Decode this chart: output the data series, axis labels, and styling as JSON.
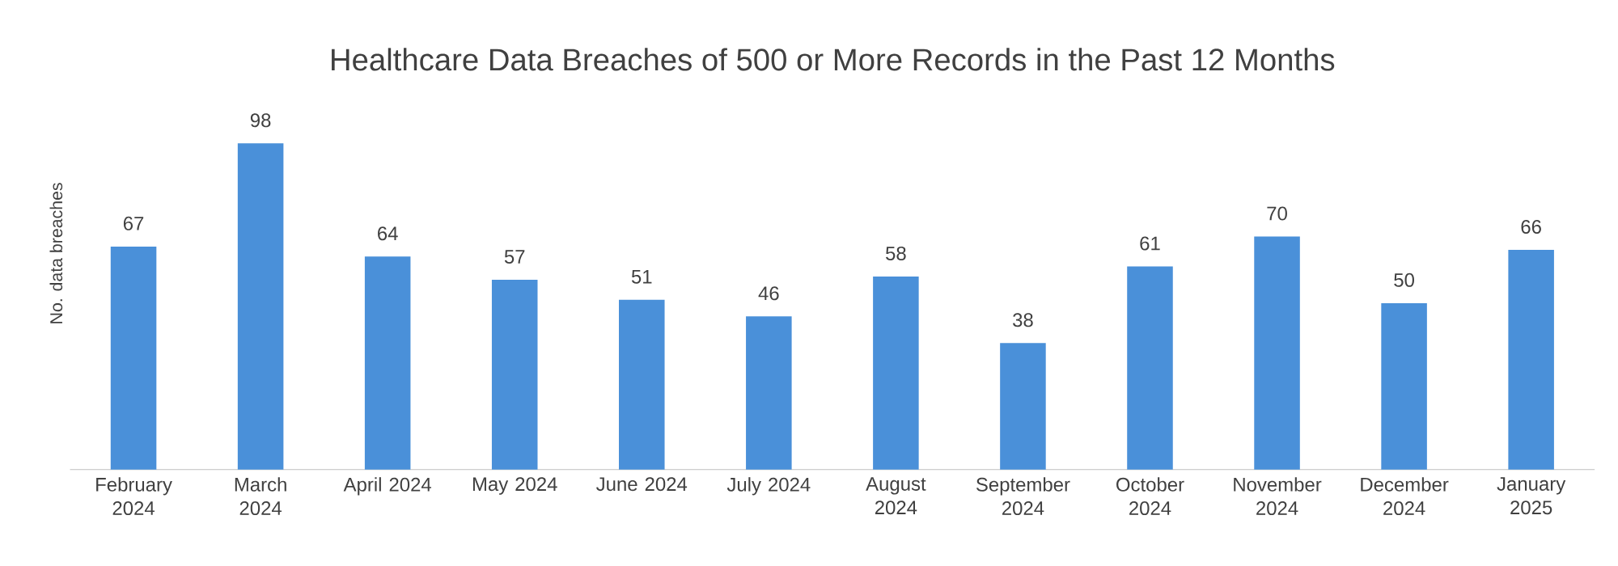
{
  "chart_data": {
    "type": "bar",
    "title": "Healthcare Data Breaches of 500 or More Records in the Past 12 Months",
    "ylabel": "No. data breaches",
    "categories": [
      "February 2024",
      "March 2024",
      "April 2024",
      "May 2024",
      "June 2024",
      "July 2024",
      "August 2024",
      "September 2024",
      "October 2024",
      "November 2024",
      "December 2024",
      "January 2025"
    ],
    "values": [
      67,
      98,
      64,
      57,
      51,
      46,
      58,
      38,
      61,
      70,
      50,
      66
    ],
    "color": "#4a90d9",
    "data_labels": true
  }
}
